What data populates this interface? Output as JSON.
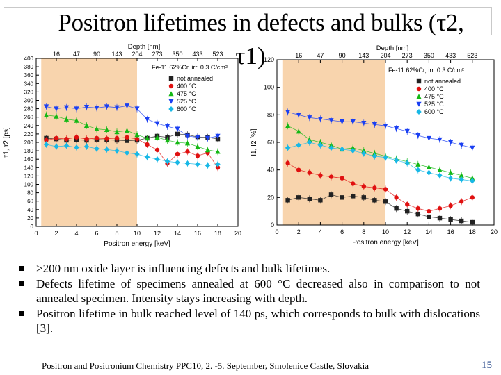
{
  "slide": {
    "title_main": "Positron lifetimes in defects and bulks (τ2,",
    "title_second": "τ1)",
    "bullets": [
      ">200 nm oxide layer is influencing defects and bulk lifetimes.",
      "Defects lifetime of specimens annealed at 600 °C decreased also in comparison to not annealed specimen. Intensity stays increasing with depth.",
      "Positron lifetime in bulk reached level of 140 ps, which corresponds to bulk with dislocations [3]."
    ],
    "footer": "Positron and Positronium Chemistry PPC10, 2. -5. September, Smolenice Castle, Slovakia",
    "page_number": "15"
  },
  "colors": {
    "highlight": "#f7cfa4",
    "series": [
      "#222222",
      "#e01010",
      "#14b814",
      "#1a3ff2",
      "#18b8e6",
      "#1a3ff2"
    ]
  },
  "chart_data": [
    {
      "type": "scatter",
      "title": "",
      "xlabel": "Positron energy [keV]",
      "ylabel": "τ1, τ2 [ps]",
      "top_axis_label": "Depth [nm]",
      "top_ticks": [
        "16",
        "47",
        "90",
        "143",
        "204",
        "273",
        "350",
        "433",
        "523"
      ],
      "top_tick_positions": [
        2,
        4,
        6,
        8,
        10,
        12,
        14,
        16,
        18
      ],
      "xlim": [
        0,
        20
      ],
      "ylim": [
        0,
        400
      ],
      "xticks": [
        0,
        2,
        4,
        6,
        8,
        10,
        12,
        14,
        16,
        18,
        20
      ],
      "yticks": [
        0,
        20,
        40,
        60,
        80,
        100,
        120,
        140,
        160,
        180,
        200,
        220,
        240,
        260,
        280,
        300,
        320,
        340,
        360,
        380,
        400
      ],
      "annotation": "Fe-11.62%Cr, irr. 0.3 C/cm²",
      "highlight_range": [
        0.5,
        10
      ],
      "x": [
        1,
        2,
        3,
        4,
        5,
        6,
        7,
        8,
        9,
        10,
        11,
        12,
        13,
        14,
        15,
        16,
        17,
        18
      ],
      "series": [
        {
          "name": "not annealed",
          "marker": "square",
          "values": [
            210,
            208,
            205,
            206,
            205,
            207,
            206,
            205,
            204,
            205,
            210,
            215,
            212,
            220,
            218,
            213,
            212,
            208
          ]
        },
        {
          "name": "400 °C",
          "marker": "circle",
          "values": [
            205,
            210,
            208,
            212,
            208,
            210,
            209,
            210,
            212,
            208,
            195,
            182,
            150,
            172,
            178,
            168,
            175,
            140
          ]
        },
        {
          "name": "475 °C",
          "marker": "triangle-up",
          "values": [
            265,
            262,
            255,
            252,
            240,
            232,
            230,
            225,
            228,
            218,
            210,
            212,
            205,
            200,
            198,
            190,
            182,
            178
          ]
        },
        {
          "name": "525 °C",
          "marker": "triangle-down",
          "values": [
            285,
            280,
            283,
            280,
            284,
            282,
            285,
            283,
            287,
            280,
            255,
            245,
            238,
            232,
            215,
            212,
            210,
            215
          ]
        },
        {
          "name": "600 °C",
          "marker": "diamond",
          "values": [
            195,
            190,
            192,
            188,
            190,
            185,
            183,
            180,
            175,
            172,
            165,
            160,
            155,
            152,
            150,
            148,
            145,
            148
          ]
        }
      ]
    },
    {
      "type": "scatter",
      "title": "",
      "xlabel": "Positron energy [keV]",
      "ylabel": "I1, I2 [%]",
      "top_axis_label": "Depth [nm]",
      "top_ticks": [
        "16",
        "47",
        "90",
        "143",
        "204",
        "273",
        "350",
        "433",
        "523"
      ],
      "top_tick_positions": [
        2,
        4,
        6,
        8,
        10,
        12,
        14,
        16,
        18
      ],
      "xlim": [
        0,
        20
      ],
      "ylim": [
        0,
        120
      ],
      "xticks": [
        0,
        2,
        4,
        6,
        8,
        10,
        12,
        14,
        16,
        18,
        20
      ],
      "yticks": [
        0,
        20,
        40,
        60,
        80,
        100,
        120
      ],
      "annotation": "Fe-11.62%Cr, irr. 0.3 C/cm²",
      "highlight_range": [
        0.5,
        10
      ],
      "x": [
        1,
        2,
        3,
        4,
        5,
        6,
        7,
        8,
        9,
        10,
        11,
        12,
        13,
        14,
        15,
        16,
        17,
        18
      ],
      "series": [
        {
          "name": "not annealed",
          "marker": "square",
          "values": [
            18,
            20,
            19,
            18,
            22,
            20,
            21,
            20,
            18,
            17,
            12,
            10,
            8,
            6,
            5,
            4,
            3,
            2
          ]
        },
        {
          "name": "400 °C",
          "marker": "circle",
          "values": [
            45,
            40,
            38,
            36,
            35,
            34,
            30,
            28,
            27,
            26,
            20,
            15,
            12,
            10,
            12,
            14,
            17,
            20
          ]
        },
        {
          "name": "475 °C",
          "marker": "triangle-up",
          "values": [
            72,
            68,
            62,
            60,
            58,
            55,
            56,
            54,
            52,
            50,
            48,
            46,
            44,
            42,
            40,
            38,
            36,
            34
          ]
        },
        {
          "name": "525 °C",
          "marker": "triangle-down",
          "values": [
            82,
            80,
            78,
            77,
            76,
            75,
            75,
            74,
            73,
            72,
            70,
            68,
            65,
            63,
            62,
            60,
            58,
            56
          ]
        },
        {
          "name": "600 °C",
          "marker": "diamond",
          "values": [
            56,
            58,
            60,
            58,
            56,
            55,
            54,
            52,
            50,
            49,
            47,
            45,
            40,
            38,
            36,
            34,
            33,
            32
          ]
        }
      ]
    }
  ]
}
